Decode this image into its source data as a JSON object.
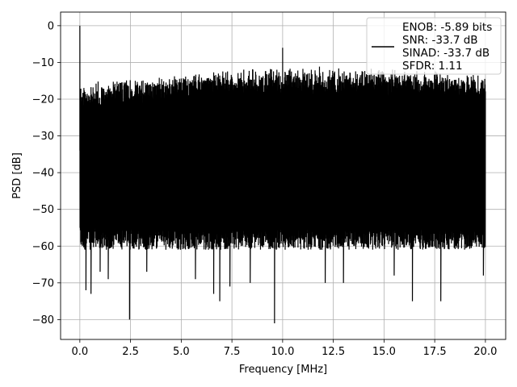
{
  "chart_data": {
    "type": "line",
    "xlabel": "Frequency [MHz]",
    "ylabel": "PSD [dB]",
    "xlim": [
      -0.95,
      21.0
    ],
    "ylim": [
      -85.4,
      3.7
    ],
    "xticks": [
      0.0,
      2.5,
      5.0,
      7.5,
      10.0,
      12.5,
      15.0,
      17.5,
      20.0
    ],
    "xtick_labels": [
      "0.0",
      "2.5",
      "5.0",
      "7.5",
      "10.0",
      "12.5",
      "15.0",
      "17.5",
      "20.0"
    ],
    "yticks": [
      0,
      -10,
      -20,
      -30,
      -40,
      -50,
      -60,
      -70,
      -80
    ],
    "ytick_labels": [
      "0",
      "−10",
      "−20",
      "−30",
      "−40",
      "−50",
      "−60",
      "−70",
      "−80"
    ],
    "grid": true,
    "legend_position": "top-right",
    "legend_lines": [
      "ENOB: -5.89 bits",
      "SNR: -33.7 dB",
      "SINAD: -33.7 dB",
      "SFDR: 1.11"
    ],
    "line_color": "#000000",
    "series": [
      {
        "x_range": [
          0.0,
          20.0
        ],
        "noise_floor_top": [
          [
            0.0,
            -18
          ],
          [
            2.5,
            -16.5
          ],
          [
            5.0,
            -15.5
          ],
          [
            7.5,
            -14
          ],
          [
            10.0,
            -13.5
          ],
          [
            12.5,
            -13.5
          ],
          [
            15.0,
            -14
          ],
          [
            17.5,
            -14.5
          ],
          [
            20.0,
            -15.5
          ]
        ],
        "noise_floor_bottom_typical": -58,
        "peaks": [
          {
            "x": 0.0,
            "y": 0.0
          },
          {
            "x": 10.0,
            "y": -6.0
          }
        ],
        "dips": [
          {
            "x": 0.3,
            "y": -72
          },
          {
            "x": 0.55,
            "y": -73
          },
          {
            "x": 1.0,
            "y": -67
          },
          {
            "x": 1.4,
            "y": -69
          },
          {
            "x": 2.45,
            "y": -80
          },
          {
            "x": 3.3,
            "y": -67
          },
          {
            "x": 5.7,
            "y": -69
          },
          {
            "x": 6.6,
            "y": -73
          },
          {
            "x": 6.9,
            "y": -75
          },
          {
            "x": 7.4,
            "y": -71
          },
          {
            "x": 8.4,
            "y": -70
          },
          {
            "x": 9.6,
            "y": -81
          },
          {
            "x": 12.1,
            "y": -70
          },
          {
            "x": 13.0,
            "y": -70
          },
          {
            "x": 15.5,
            "y": -68
          },
          {
            "x": 16.4,
            "y": -75
          },
          {
            "x": 17.8,
            "y": -75
          },
          {
            "x": 19.9,
            "y": -68
          }
        ]
      }
    ]
  }
}
